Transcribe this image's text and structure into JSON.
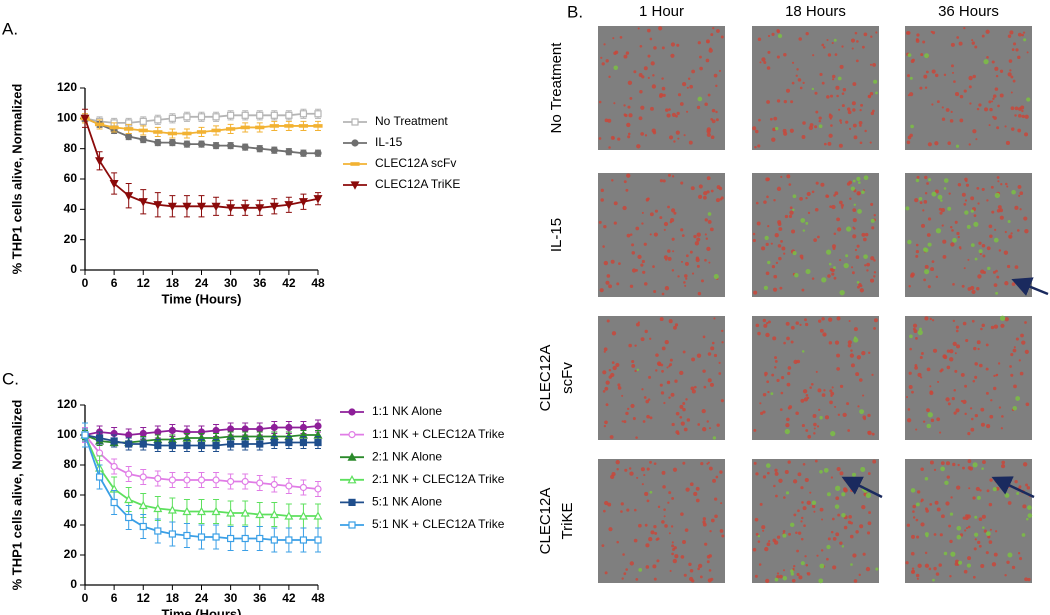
{
  "chart_data": [
    {
      "type": "line",
      "panel_label": "A.",
      "xlabel": "Time (Hours)",
      "ylabel": "% THP1 cells alive, Normalized",
      "x": [
        0,
        3,
        6,
        9,
        12,
        15,
        18,
        21,
        24,
        27,
        30,
        33,
        36,
        39,
        42,
        45,
        48
      ],
      "xlim": [
        0,
        48
      ],
      "xticks": [
        0,
        6,
        12,
        18,
        24,
        30,
        36,
        42,
        48
      ],
      "ylim": [
        0,
        120
      ],
      "yticks": [
        0,
        20,
        40,
        60,
        80,
        100,
        120
      ],
      "series": [
        {
          "name": "No Treatment",
          "color": "#b5b5b5",
          "marker": "square",
          "open": true,
          "values": [
            100,
            98,
            97,
            97,
            98,
            99,
            100,
            101,
            101,
            101,
            102,
            102,
            102,
            102,
            102,
            103,
            103
          ],
          "errors": [
            3,
            3,
            3,
            3,
            3,
            3,
            3,
            3,
            3,
            3,
            3,
            3,
            3,
            3,
            3,
            3,
            3
          ]
        },
        {
          "name": "IL-15",
          "color": "#6f6f6f",
          "marker": "circle",
          "open": false,
          "values": [
            100,
            96,
            92,
            88,
            86,
            84,
            84,
            83,
            83,
            82,
            82,
            81,
            80,
            79,
            78,
            77,
            77
          ],
          "errors": [
            2,
            2,
            2,
            2,
            2,
            2,
            2,
            2,
            2,
            2,
            2,
            2,
            2,
            2,
            2,
            2,
            2
          ]
        },
        {
          "name": "CLEC12A scFv",
          "color": "#f2b233",
          "marker": "dash",
          "open": false,
          "values": [
            100,
            96,
            94,
            93,
            92,
            91,
            90,
            90,
            91,
            92,
            93,
            94,
            94,
            95,
            95,
            95,
            95
          ],
          "errors": [
            3,
            3,
            3,
            3,
            3,
            3,
            3,
            3,
            3,
            3,
            3,
            3,
            3,
            3,
            3,
            3,
            3
          ]
        },
        {
          "name": "CLEC12A TriKE",
          "color": "#8b0a0a",
          "marker": "triangle-down",
          "open": false,
          "values": [
            100,
            72,
            57,
            49,
            45,
            43,
            42,
            42,
            42,
            42,
            41,
            41,
            41,
            42,
            43,
            45,
            47
          ],
          "errors": [
            6,
            6,
            7,
            8,
            8,
            8,
            7,
            7,
            7,
            6,
            5,
            5,
            5,
            5,
            5,
            5,
            4
          ]
        }
      ]
    },
    {
      "type": "line",
      "panel_label": "C.",
      "xlabel": "Time (Hours)",
      "ylabel": "% THP1 cells alive, Normalized",
      "x": [
        0,
        3,
        6,
        9,
        12,
        15,
        18,
        21,
        24,
        27,
        30,
        33,
        36,
        39,
        42,
        45,
        48
      ],
      "xlim": [
        0,
        48
      ],
      "xticks": [
        0,
        6,
        12,
        18,
        24,
        30,
        36,
        42,
        48
      ],
      "ylim": [
        0,
        120
      ],
      "yticks": [
        0,
        20,
        40,
        60,
        80,
        100,
        120
      ],
      "series": [
        {
          "name": "1:1 NK Alone",
          "color": "#8e1f99",
          "marker": "circle",
          "open": false,
          "values": [
            100,
            102,
            101,
            100,
            101,
            102,
            103,
            102,
            102,
            103,
            104,
            104,
            104,
            105,
            105,
            105,
            106
          ],
          "errors": [
            4,
            4,
            4,
            4,
            4,
            4,
            4,
            4,
            4,
            4,
            4,
            4,
            4,
            4,
            4,
            4,
            4
          ]
        },
        {
          "name": "1:1 NK + CLEC12A Trike",
          "color": "#e07ce6",
          "marker": "circle",
          "open": true,
          "values": [
            100,
            88,
            79,
            74,
            72,
            71,
            70,
            70,
            70,
            70,
            69,
            69,
            68,
            67,
            66,
            65,
            64
          ],
          "errors": [
            5,
            5,
            5,
            5,
            5,
            5,
            5,
            5,
            5,
            5,
            5,
            5,
            5,
            5,
            5,
            5,
            5
          ]
        },
        {
          "name": "2:1 NK Alone",
          "color": "#2b8a2b",
          "marker": "triangle",
          "open": false,
          "values": [
            100,
            96,
            95,
            95,
            96,
            97,
            97,
            98,
            98,
            98,
            99,
            99,
            99,
            99,
            99,
            100,
            100
          ],
          "errors": [
            3,
            3,
            3,
            3,
            3,
            3,
            3,
            3,
            3,
            3,
            3,
            3,
            3,
            3,
            3,
            3,
            3
          ]
        },
        {
          "name": "2:1 NK + CLEC12A Trike",
          "color": "#5de05d",
          "marker": "triangle",
          "open": true,
          "values": [
            100,
            78,
            64,
            57,
            53,
            51,
            50,
            49,
            49,
            49,
            48,
            48,
            47,
            47,
            46,
            46,
            46
          ],
          "errors": [
            8,
            8,
            8,
            8,
            8,
            8,
            8,
            8,
            8,
            8,
            8,
            8,
            8,
            8,
            8,
            8,
            8
          ]
        },
        {
          "name": "5:1 NK Alone",
          "color": "#1f4e8c",
          "marker": "square",
          "open": false,
          "values": [
            100,
            98,
            96,
            94,
            94,
            93,
            93,
            93,
            93,
            93,
            94,
            94,
            94,
            95,
            95,
            95,
            95
          ],
          "errors": [
            4,
            4,
            4,
            4,
            4,
            4,
            4,
            4,
            4,
            4,
            4,
            4,
            4,
            4,
            4,
            4,
            4
          ]
        },
        {
          "name": "5:1 NK + CLEC12A Trike",
          "color": "#3a9fe6",
          "marker": "square",
          "open": true,
          "values": [
            100,
            72,
            55,
            45,
            39,
            36,
            34,
            33,
            32,
            32,
            31,
            31,
            31,
            30,
            30,
            30,
            30
          ],
          "errors": [
            8,
            8,
            8,
            8,
            8,
            8,
            8,
            8,
            8,
            8,
            8,
            8,
            8,
            8,
            8,
            8,
            8
          ]
        }
      ]
    }
  ],
  "image_panel": {
    "label": "B.",
    "columns": [
      "1 Hour",
      "18 Hours",
      "36 Hours"
    ],
    "rows": [
      [
        "No Treatment"
      ],
      [
        "IL-15"
      ],
      [
        "CLEC12A",
        "scFv"
      ],
      [
        "CLEC12A",
        "TriKE"
      ]
    ]
  }
}
